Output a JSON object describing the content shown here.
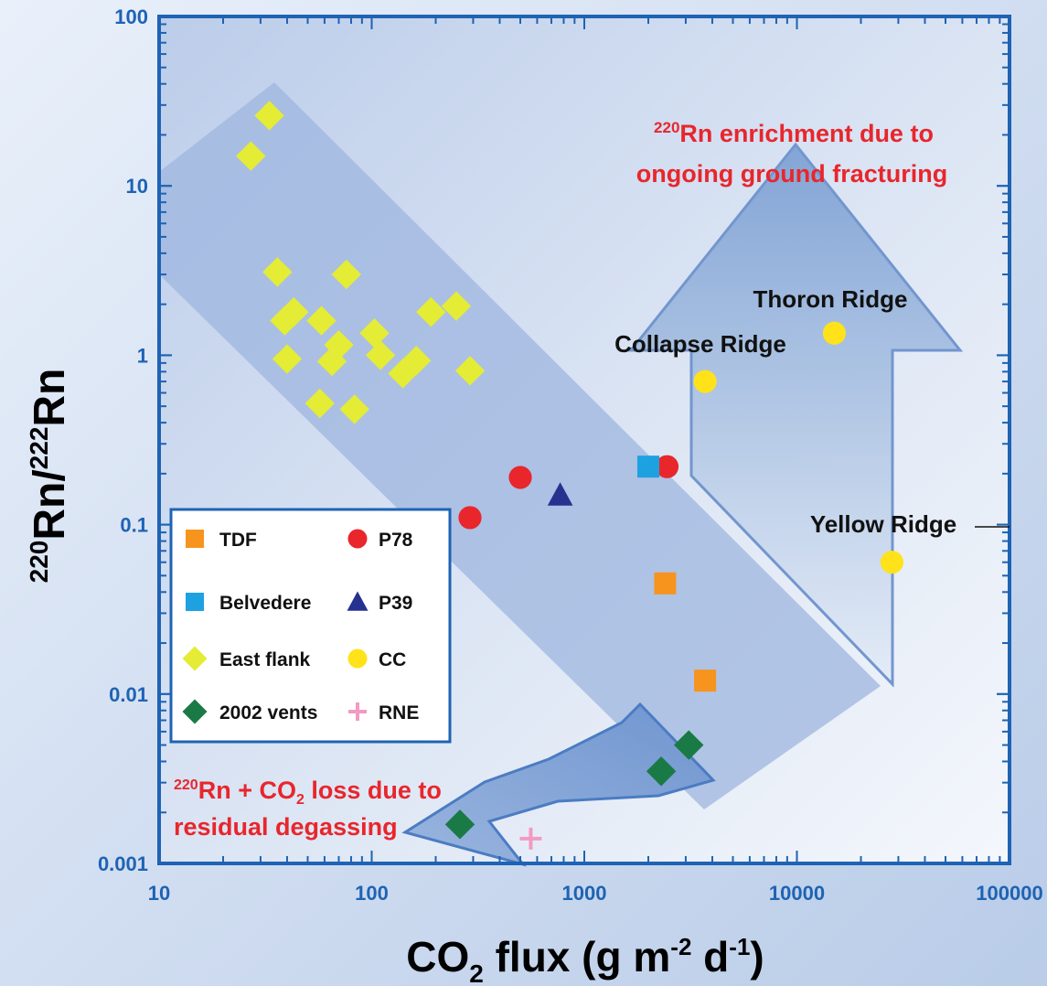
{
  "colors": {
    "frame": "#1e63b4",
    "tdf": "#f7941d",
    "belvedere": "#1ea1e0",
    "east_flank": "#e4ec35",
    "vents2002": "#1a7a45",
    "p78": "#e8262c",
    "p39": "#25328f",
    "cc": "#ffe21a",
    "rne": "#f39ac3",
    "annotation_red": "#e8262c"
  },
  "chart_data": {
    "type": "scatter",
    "x_scale": "log",
    "y_scale": "log",
    "xlim": [
      10,
      100000
    ],
    "ylim": [
      0.001,
      100
    ],
    "xticks": [
      "10",
      "100",
      "1000",
      "10000",
      "100000"
    ],
    "yticks": [
      "0.001",
      "0.01",
      "0.1",
      "1",
      "10",
      "100"
    ],
    "xlabel": {
      "main": "CO",
      "sub": "2",
      "rest": " flux (g m",
      "sup1": "-2",
      "mid": " d",
      "sup2": "-1",
      "end": ")"
    },
    "ylabel": {
      "sup1": "220",
      "base1": "Rn/",
      "sup2": "222",
      "base2": "Rn"
    },
    "series": [
      {
        "name": "TDF",
        "marker": "square",
        "color": "#f7941d",
        "points": [
          [
            2400,
            0.045
          ],
          [
            3700,
            0.012
          ]
        ]
      },
      {
        "name": "P78",
        "marker": "circle",
        "color": "#e8262c",
        "points": [
          [
            290,
            0.11
          ],
          [
            500,
            0.19
          ],
          [
            2450,
            0.22
          ]
        ]
      },
      {
        "name": "Belvedere",
        "marker": "square",
        "color": "#1ea1e0",
        "points": [
          [
            2000,
            0.22
          ]
        ]
      },
      {
        "name": "P39",
        "marker": "triangle",
        "color": "#25328f",
        "points": [
          [
            770,
            0.15
          ]
        ]
      },
      {
        "name": "East flank",
        "marker": "diamond",
        "color": "#e4ec35",
        "points": [
          [
            27,
            15
          ],
          [
            33,
            26
          ],
          [
            36,
            3.1
          ],
          [
            39,
            1.6
          ],
          [
            43,
            1.8
          ],
          [
            40,
            0.95
          ],
          [
            57,
            0.52
          ],
          [
            58,
            1.6
          ],
          [
            65,
            0.92
          ],
          [
            70,
            1.15
          ],
          [
            76,
            3.0
          ],
          [
            83,
            0.48
          ],
          [
            103,
            1.35
          ],
          [
            110,
            1.0
          ],
          [
            140,
            0.78
          ],
          [
            162,
            0.93
          ],
          [
            190,
            1.8
          ],
          [
            250,
            1.95
          ],
          [
            290,
            0.81
          ]
        ]
      },
      {
        "name": "CC",
        "marker": "circle",
        "color": "#ffe21a",
        "points": [
          [
            3700,
            0.7
          ],
          [
            15000,
            1.35
          ],
          [
            28000,
            0.06
          ]
        ]
      },
      {
        "name": "2002 vents",
        "marker": "diamond",
        "color": "#1a7a45",
        "points": [
          [
            260,
            0.0017
          ],
          [
            2300,
            0.0035
          ],
          [
            3100,
            0.005
          ]
        ]
      },
      {
        "name": "RNE",
        "marker": "plus",
        "color": "#f39ac3",
        "points": [
          [
            560,
            0.0014
          ]
        ]
      }
    ],
    "legend": {
      "placement": "bottom-left",
      "rows": [
        [
          {
            "label": "TDF",
            "marker": "square",
            "color": "#f7941d"
          },
          {
            "label": "P78",
            "marker": "circle",
            "color": "#e8262c"
          }
        ],
        [
          {
            "label": "Belvedere",
            "marker": "square",
            "color": "#1ea1e0"
          },
          {
            "label": "P39",
            "marker": "triangle",
            "color": "#25328f"
          }
        ],
        [
          {
            "label": "East flank",
            "marker": "diamond",
            "color": "#e4ec35"
          },
          {
            "label": "CC",
            "marker": "circle",
            "color": "#ffe21a"
          }
        ],
        [
          {
            "label": "2002 vents",
            "marker": "diamond",
            "color": "#1a7a45"
          },
          {
            "label": "RNE",
            "marker": "plus",
            "color": "#f39ac3"
          }
        ]
      ]
    },
    "annotations": {
      "enrichment": {
        "sup": "220",
        "line1": "Rn enrichment due to",
        "line2": "ongoing ground fracturing"
      },
      "loss": {
        "sup": "220",
        "line1a": "Rn + CO",
        "sub": "2",
        "line1b": " loss due to",
        "line2": "residual degassing"
      },
      "thoron_ridge": "Thoron Ridge",
      "collapse_ridge": "Collapse Ridge",
      "yellow_ridge": "Yellow Ridge"
    }
  }
}
